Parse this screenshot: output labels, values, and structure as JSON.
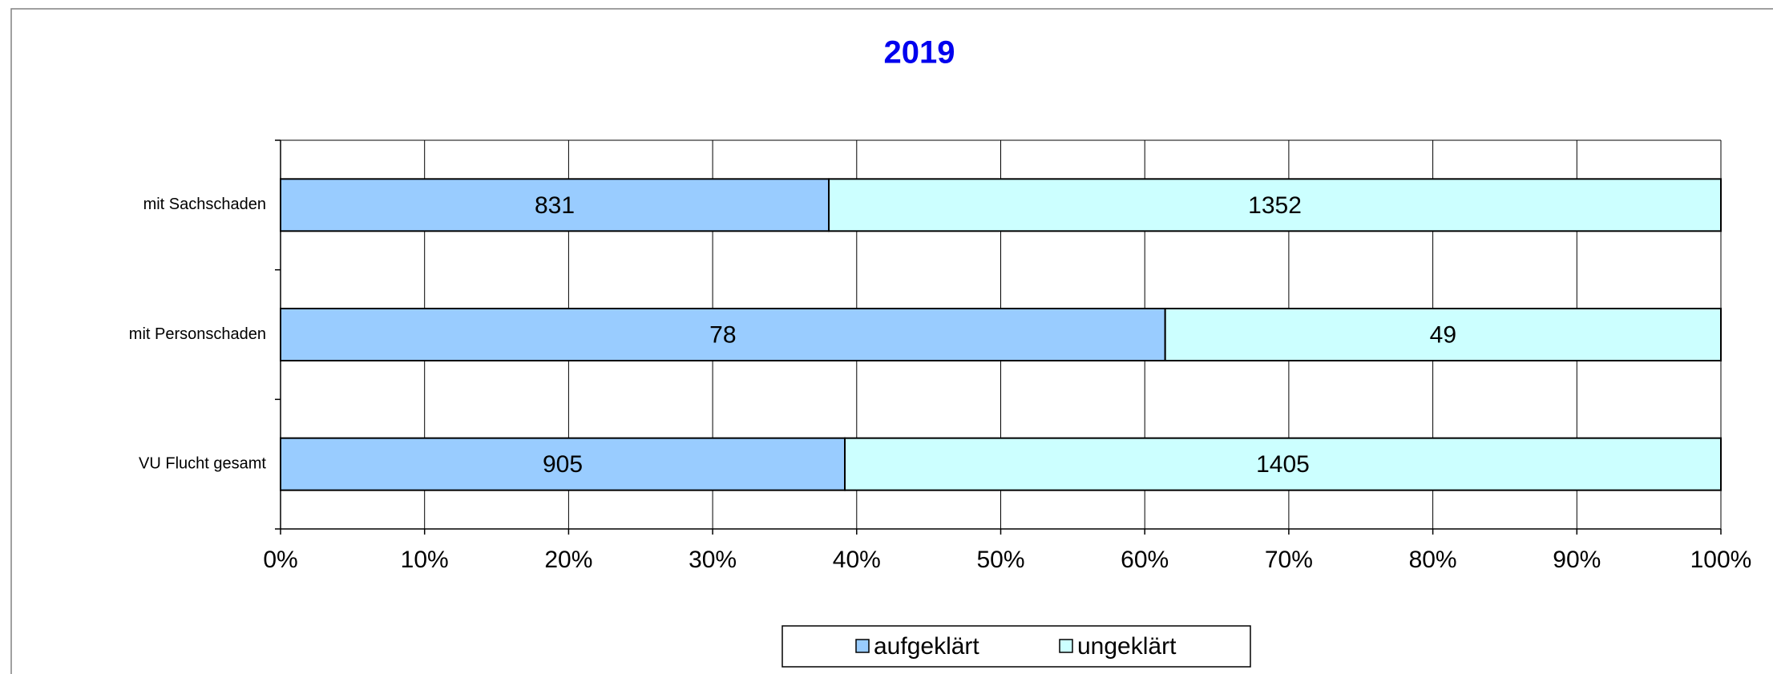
{
  "chart_data": {
    "type": "bar",
    "orientation": "horizontal",
    "stacking": "percent",
    "title": "2019",
    "categories": [
      "mit Sachschaden",
      "mit Personschaden",
      "VU Flucht gesamt"
    ],
    "series": [
      {
        "name": "aufgeklärt",
        "color": "#99ccff",
        "values": [
          831,
          78,
          905
        ]
      },
      {
        "name": "ungeklärt",
        "color": "#ccffff",
        "values": [
          1352,
          49,
          1405
        ]
      }
    ],
    "xlim": [
      0,
      100
    ],
    "xticks": [
      {
        "value": 0,
        "label": "0%"
      },
      {
        "value": 10,
        "label": "10%"
      },
      {
        "value": 20,
        "label": "20%"
      },
      {
        "value": 30,
        "label": "30%"
      },
      {
        "value": 40,
        "label": "40%"
      },
      {
        "value": 50,
        "label": "50%"
      },
      {
        "value": 60,
        "label": "60%"
      },
      {
        "value": 70,
        "label": "70%"
      },
      {
        "value": 80,
        "label": "80%"
      },
      {
        "value": 90,
        "label": "90%"
      },
      {
        "value": 100,
        "label": "100%"
      }
    ],
    "grid": true,
    "legend": "bottom"
  }
}
